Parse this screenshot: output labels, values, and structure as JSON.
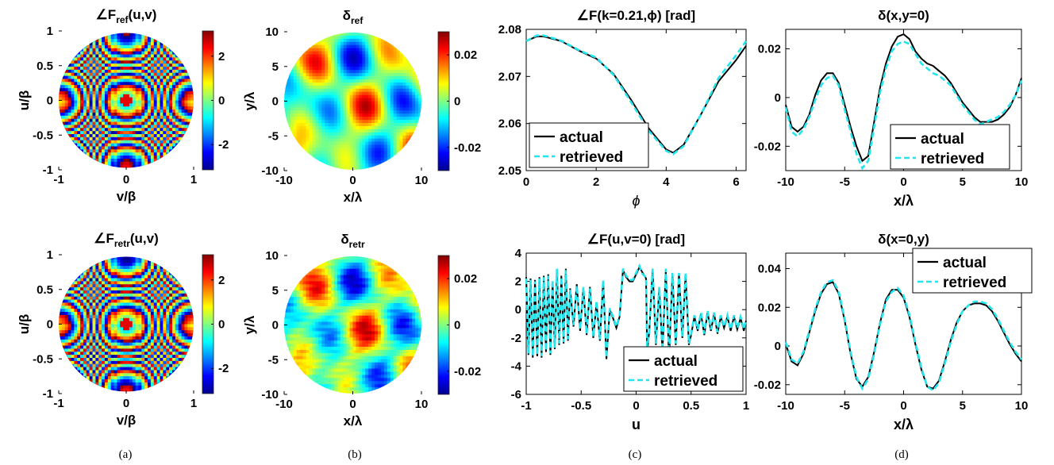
{
  "figure_captions": [
    "(a)",
    "(b)",
    "(c)",
    "(d)"
  ],
  "colormap": [
    "#00008f",
    "#0000ff",
    "#0080ff",
    "#00ffff",
    "#80ff80",
    "#ffff00",
    "#ff8000",
    "#ff0000",
    "#800000"
  ],
  "chart_data": [
    {
      "id": "a-top",
      "type": "heatmap",
      "title": "∠F_ref(u,v)",
      "title_parts": [
        "∠F",
        "ref",
        "(u,v)"
      ],
      "xlabel": "v/β",
      "ylabel": "u/β",
      "xlim": [
        -1,
        1
      ],
      "ylim": [
        -1,
        1
      ],
      "xticks": [
        "-1",
        "0",
        "1"
      ],
      "yticks": [
        "1",
        "0.5",
        "0",
        "-0.5",
        "-1"
      ],
      "colorbar": {
        "range": [
          -3.14,
          3.14
        ],
        "ticks": [
          2,
          0,
          -2
        ],
        "tick_labels": [
          "2",
          "0",
          "-2"
        ]
      },
      "pattern": "concentric phase rings with horizontal band, circular aperture"
    },
    {
      "id": "a-bottom",
      "type": "heatmap",
      "title": "∠F_retr(u,v)",
      "title_parts": [
        "∠F",
        "retr",
        "(u,v)"
      ],
      "xlabel": "v/β",
      "ylabel": "u/β",
      "xlim": [
        -1,
        1
      ],
      "ylim": [
        -1,
        1
      ],
      "xticks": [
        "-1",
        "0",
        "1"
      ],
      "yticks": [
        "1",
        "0.5",
        "0",
        "-0.5",
        "-1"
      ],
      "colorbar": {
        "range": [
          -3.14,
          3.14
        ],
        "ticks": [
          2,
          0,
          -2
        ],
        "tick_labels": [
          "2",
          "0",
          "-2"
        ]
      },
      "pattern": "concentric phase rings with horizontal band, circular aperture"
    },
    {
      "id": "b-top",
      "type": "heatmap",
      "title": "δ_ref",
      "title_parts": [
        "δ",
        "ref",
        ""
      ],
      "xlabel": "x/λ",
      "ylabel": "y/λ",
      "xlim": [
        -10,
        10
      ],
      "ylim": [
        -10,
        10
      ],
      "xticks": [
        "-10",
        "0",
        "10"
      ],
      "yticks": [
        "10",
        "5",
        "0",
        "-5",
        "-10"
      ],
      "colorbar": {
        "range": [
          -0.03,
          0.03
        ],
        "ticks": [
          0.02,
          0,
          -0.02
        ],
        "tick_labels": [
          "0.02",
          "0",
          "-0.02"
        ]
      },
      "pattern": "smooth random phase blobs, circular aperture"
    },
    {
      "id": "b-bottom",
      "type": "heatmap",
      "title": "δ_retr",
      "title_parts": [
        "δ",
        "retr",
        ""
      ],
      "xlabel": "x/λ",
      "ylabel": "y/λ",
      "xlim": [
        -10,
        10
      ],
      "ylim": [
        -10,
        10
      ],
      "xticks": [
        "-10",
        "0",
        "10"
      ],
      "yticks": [
        "10",
        "5",
        "0",
        "-5",
        "-10"
      ],
      "colorbar": {
        "range": [
          -0.03,
          0.03
        ],
        "ticks": [
          0.02,
          0,
          -0.02
        ],
        "tick_labels": [
          "0.02",
          "0",
          "-0.02"
        ]
      },
      "pattern": "smooth random phase blobs with noise, circular aperture"
    },
    {
      "id": "c-top",
      "type": "line",
      "title": "∠F(k=0.21,ϕ) [rad]",
      "xlabel": "ϕ",
      "ylabel": "",
      "xlim": [
        0,
        6.283
      ],
      "ylim": [
        2.05,
        2.08
      ],
      "xticks": [
        0,
        2,
        4,
        6
      ],
      "xtick_labels": [
        "0",
        "2",
        "4",
        "6"
      ],
      "yticks": [
        2.08,
        2.07,
        2.06,
        2.05
      ],
      "ytick_labels": [
        "2.08",
        "2.07",
        "2.06",
        "2.05"
      ],
      "legend": {
        "position": "bottom-left",
        "entries": [
          "actual",
          "retrieved"
        ]
      },
      "series": [
        {
          "name": "actual",
          "x": [
            0,
            0.3,
            0.5,
            1.0,
            1.5,
            2.0,
            2.5,
            3.0,
            3.5,
            4.0,
            4.2,
            4.5,
            5.0,
            5.5,
            6.0,
            6.283
          ],
          "values": [
            2.0775,
            2.0785,
            2.0785,
            2.0775,
            2.0755,
            2.0738,
            2.0705,
            2.065,
            2.059,
            2.0545,
            2.0538,
            2.0555,
            2.062,
            2.069,
            2.0735,
            2.0765
          ]
        },
        {
          "name": "retrieved",
          "x": [
            0,
            0.3,
            0.5,
            1.0,
            1.5,
            2.0,
            2.5,
            3.0,
            3.5,
            4.0,
            4.2,
            4.5,
            5.0,
            5.5,
            6.0,
            6.283
          ],
          "values": [
            2.0775,
            2.0787,
            2.0787,
            2.0776,
            2.0756,
            2.074,
            2.0703,
            2.0645,
            2.0585,
            2.0542,
            2.0535,
            2.0552,
            2.062,
            2.0697,
            2.0745,
            2.0775
          ]
        }
      ]
    },
    {
      "id": "c-bottom",
      "type": "line",
      "title": "∠F(u,v=0) [rad]",
      "xlabel": "u",
      "ylabel": "",
      "xlim": [
        -1,
        1
      ],
      "ylim": [
        -6,
        4
      ],
      "xticks": [
        -1,
        -0.5,
        0,
        0.5,
        1
      ],
      "xtick_labels": [
        "-1",
        "-0.5",
        "0",
        "0.5",
        "1"
      ],
      "yticks": [
        4,
        2,
        0,
        -2,
        -4,
        -6
      ],
      "ytick_labels": [
        "4",
        "2",
        "0",
        "-2",
        "-4",
        "-6"
      ],
      "legend": {
        "position": "bottom-right",
        "entries": [
          "actual",
          "retrieved"
        ]
      },
      "series": [
        {
          "name": "actual",
          "x": [
            -1,
            -0.98,
            -0.96,
            -0.94,
            -0.92,
            -0.9,
            -0.88,
            -0.86,
            -0.84,
            -0.82,
            -0.8,
            -0.78,
            -0.76,
            -0.74,
            -0.72,
            -0.7,
            -0.68,
            -0.66,
            -0.64,
            -0.62,
            -0.6,
            -0.57,
            -0.54,
            -0.51,
            -0.48,
            -0.45,
            -0.42,
            -0.39,
            -0.36,
            -0.33,
            -0.3,
            -0.27,
            -0.24,
            -0.21,
            -0.18,
            -0.15,
            -0.12,
            -0.09,
            -0.06,
            -0.03,
            0,
            0.03,
            0.06,
            0.09,
            0.1,
            0.12,
            0.15,
            0.18,
            0.21,
            0.24,
            0.27,
            0.3,
            0.33,
            0.36,
            0.39,
            0.42,
            0.45,
            0.48,
            0.5,
            0.53,
            0.56,
            0.59,
            0.62,
            0.65,
            0.68,
            0.71,
            0.74,
            0.77,
            0.8,
            0.83,
            0.86,
            0.89,
            0.92,
            0.95,
            0.98,
            1.0
          ],
          "values": [
            2.3,
            -3.2,
            2.2,
            -3.4,
            2.1,
            -3.3,
            2.3,
            -3.4,
            2.4,
            -3.0,
            2.5,
            -3.2,
            2.0,
            -2.8,
            2.8,
            -2.5,
            2.4,
            -2.4,
            2.9,
            -2.2,
            1.5,
            -1.2,
            1.8,
            -1.5,
            1.5,
            -1.8,
            1.6,
            -2.0,
            0.5,
            -2.2,
            2.0,
            -3.5,
            0.0,
            -0.6,
            -1.3,
            -0.5,
            2.8,
            2.3,
            2.0,
            2.0,
            2.5,
            3.0,
            2.6,
            2.2,
            -3.0,
            -1.5,
            2.8,
            -2.5,
            1.5,
            -3.0,
            2.8,
            -3.5,
            2.5,
            -2.5,
            2.5,
            -2.0,
            2.5,
            -2.5,
            -1.8,
            -0.5,
            -1.5,
            -0.3,
            -1.8,
            -0.2,
            -1.5,
            -0.3,
            -1.7,
            -0.5,
            -1.3,
            -0.5,
            -1.5,
            -0.5,
            -1.4,
            -0.6,
            -1.5,
            -0.8
          ]
        },
        {
          "name": "retrieved",
          "x": [
            -1,
            -0.98,
            -0.96,
            -0.94,
            -0.92,
            -0.9,
            -0.88,
            -0.86,
            -0.84,
            -0.82,
            -0.8,
            -0.78,
            -0.76,
            -0.74,
            -0.72,
            -0.7,
            -0.68,
            -0.66,
            -0.64,
            -0.62,
            -0.6,
            -0.57,
            -0.54,
            -0.51,
            -0.48,
            -0.45,
            -0.42,
            -0.39,
            -0.36,
            -0.33,
            -0.3,
            -0.27,
            -0.24,
            -0.21,
            -0.18,
            -0.15,
            -0.12,
            -0.09,
            -0.06,
            -0.03,
            0,
            0.03,
            0.06,
            0.09,
            0.1,
            0.12,
            0.15,
            0.18,
            0.21,
            0.24,
            0.27,
            0.3,
            0.33,
            0.36,
            0.39,
            0.42,
            0.45,
            0.48,
            0.5,
            0.53,
            0.56,
            0.59,
            0.62,
            0.65,
            0.68,
            0.71,
            0.74,
            0.77,
            0.8,
            0.83,
            0.86,
            0.89,
            0.92,
            0.95,
            0.98,
            1.0
          ],
          "values": [
            2.2,
            -3.1,
            2.1,
            -3.3,
            2.0,
            -3.2,
            2.2,
            -3.3,
            2.3,
            -2.9,
            2.4,
            -3.1,
            2.1,
            -2.7,
            2.9,
            -2.4,
            2.3,
            -2.3,
            2.8,
            -2.1,
            1.4,
            -1.1,
            1.7,
            -1.4,
            1.6,
            -1.7,
            1.5,
            -1.9,
            0.6,
            -2.1,
            2.1,
            -3.4,
            0.1,
            -0.5,
            -1.2,
            -0.4,
            2.9,
            2.4,
            2.1,
            2.1,
            2.6,
            3.1,
            2.5,
            2.3,
            -2.9,
            -1.4,
            2.9,
            -2.4,
            1.6,
            -2.9,
            2.9,
            -3.4,
            2.6,
            -2.4,
            2.6,
            -1.9,
            2.6,
            -2.4,
            -1.7,
            -0.4,
            -1.4,
            -0.2,
            -1.7,
            -0.1,
            -1.4,
            -0.2,
            -1.6,
            -0.4,
            -1.2,
            -0.4,
            -1.4,
            -0.4,
            -1.3,
            -0.5,
            -1.4,
            -0.7
          ]
        }
      ]
    },
    {
      "id": "d-top",
      "type": "line",
      "title": "δ(x,y=0)",
      "xlabel": "x/λ",
      "ylabel": "",
      "xlim": [
        -10,
        10
      ],
      "ylim": [
        -0.03,
        0.028
      ],
      "xticks": [
        -10,
        -5,
        0,
        5,
        10
      ],
      "xtick_labels": [
        "-10",
        "-5",
        "0",
        "5",
        "10"
      ],
      "yticks": [
        0.02,
        0,
        -0.02
      ],
      "ytick_labels": [
        "0.02",
        "0",
        "-0.02"
      ],
      "legend": {
        "position": "bottom-right",
        "entries": [
          "actual",
          "retrieved"
        ]
      },
      "series": [
        {
          "name": "actual",
          "x": [
            -10,
            -9.5,
            -9,
            -8.5,
            -8,
            -7.5,
            -7,
            -6.5,
            -6,
            -5.5,
            -5,
            -4.5,
            -4,
            -3.5,
            -3,
            -2.5,
            -2,
            -1.5,
            -1,
            -0.5,
            0,
            0.5,
            1,
            1.5,
            2,
            2.5,
            3,
            3.5,
            4,
            4.5,
            5,
            5.5,
            6,
            6.5,
            7,
            7.5,
            8,
            8.5,
            9,
            9.5,
            10
          ],
          "values": [
            -0.003,
            -0.012,
            -0.014,
            -0.012,
            -0.007,
            0.001,
            0.007,
            0.01,
            0.01,
            0.006,
            -0.003,
            -0.012,
            -0.02,
            -0.026,
            -0.024,
            -0.01,
            0.004,
            0.014,
            0.021,
            0.025,
            0.026,
            0.024,
            0.019,
            0.016,
            0.014,
            0.013,
            0.011,
            0.009,
            0.006,
            0.002,
            -0.002,
            -0.005,
            -0.008,
            -0.01,
            -0.01,
            -0.01,
            -0.009,
            -0.007,
            -0.004,
            0.001,
            0.008
          ]
        },
        {
          "name": "retrieved",
          "x": [
            -10,
            -9.5,
            -9,
            -8.5,
            -8,
            -7.5,
            -7,
            -6.5,
            -6,
            -5.5,
            -5,
            -4.5,
            -4,
            -3.5,
            -3,
            -2.5,
            -2,
            -1.5,
            -1,
            -0.5,
            0,
            0.5,
            1,
            1.5,
            2,
            2.5,
            3,
            3.5,
            4,
            4.5,
            5,
            5.5,
            6,
            6.5,
            7,
            7.5,
            8,
            8.5,
            9,
            9.5,
            10
          ],
          "values": [
            -0.004,
            -0.014,
            -0.016,
            -0.013,
            -0.008,
            -0.001,
            0.005,
            0.008,
            0.009,
            0.005,
            -0.005,
            -0.014,
            -0.023,
            -0.029,
            -0.026,
            -0.012,
            0.002,
            0.012,
            0.019,
            0.022,
            0.023,
            0.022,
            0.018,
            0.014,
            0.012,
            0.01,
            0.009,
            0.007,
            0.005,
            0.001,
            -0.003,
            -0.006,
            -0.009,
            -0.011,
            -0.01,
            -0.009,
            -0.008,
            -0.006,
            -0.003,
            0.001,
            0.007
          ]
        }
      ]
    },
    {
      "id": "d-bottom",
      "type": "line",
      "title": "δ(x=0,y)",
      "xlabel": "x/λ",
      "ylabel": "",
      "xlim": [
        -10,
        10
      ],
      "ylim": [
        -0.025,
        0.048
      ],
      "xticks": [
        -10,
        -5,
        0,
        5,
        10
      ],
      "xtick_labels": [
        "-10",
        "-5",
        "0",
        "5",
        "10"
      ],
      "yticks": [
        0.04,
        0.02,
        0,
        -0.02
      ],
      "ytick_labels": [
        "0.04",
        "0.02",
        "0",
        "-0.02"
      ],
      "legend": {
        "position": "top-right",
        "entries": [
          "actual",
          "retrieved"
        ]
      },
      "series": [
        {
          "name": "actual",
          "x": [
            -10,
            -9.5,
            -9,
            -8.5,
            -8,
            -7.5,
            -7,
            -6.5,
            -6,
            -5.5,
            -5,
            -4.5,
            -4,
            -3.5,
            -3,
            -2.5,
            -2,
            -1.5,
            -1,
            -0.5,
            0,
            0.5,
            1,
            1.5,
            2,
            2.5,
            3,
            3.5,
            4,
            4.5,
            5,
            5.5,
            6,
            6.5,
            7,
            7.5,
            8,
            8.5,
            9,
            9.5,
            10
          ],
          "values": [
            0.001,
            -0.008,
            -0.01,
            -0.004,
            0.007,
            0.018,
            0.027,
            0.032,
            0.033,
            0.027,
            0.013,
            -0.004,
            -0.017,
            -0.021,
            -0.016,
            -0.003,
            0.012,
            0.024,
            0.029,
            0.029,
            0.025,
            0.015,
            0.001,
            -0.012,
            -0.021,
            -0.022,
            -0.018,
            -0.008,
            0.003,
            0.012,
            0.018,
            0.021,
            0.022,
            0.022,
            0.021,
            0.018,
            0.013,
            0.007,
            0.001,
            -0.004,
            -0.008
          ]
        },
        {
          "name": "retrieved",
          "x": [
            -10,
            -9.5,
            -9,
            -8.5,
            -8,
            -7.5,
            -7,
            -6.5,
            -6,
            -5.5,
            -5,
            -4.5,
            -4,
            -3.5,
            -3,
            -2.5,
            -2,
            -1.5,
            -1,
            -0.5,
            0,
            0.5,
            1,
            1.5,
            2,
            2.5,
            3,
            3.5,
            4,
            4.5,
            5,
            5.5,
            6,
            6.5,
            7,
            7.5,
            8,
            8.5,
            9,
            9.5,
            10
          ],
          "values": [
            0.002,
            -0.007,
            -0.009,
            -0.003,
            0.008,
            0.019,
            0.028,
            0.033,
            0.034,
            0.028,
            0.014,
            -0.003,
            -0.016,
            -0.022,
            -0.017,
            -0.004,
            0.011,
            0.023,
            0.028,
            0.03,
            0.026,
            0.016,
            0.002,
            -0.011,
            -0.021,
            -0.023,
            -0.019,
            -0.009,
            0.002,
            0.011,
            0.018,
            0.021,
            0.023,
            0.023,
            0.022,
            0.019,
            0.014,
            0.008,
            0.002,
            -0.003,
            -0.007
          ]
        }
      ]
    }
  ]
}
